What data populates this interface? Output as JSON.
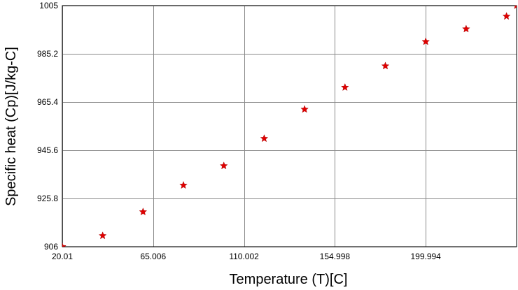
{
  "chart_data": {
    "type": "scatter",
    "title": "",
    "xlabel": "Temperature (T)[C]",
    "ylabel": "Specific heat (Cp)[J/kg-C]",
    "xlim": [
      20.01,
      245.0
    ],
    "ylim": [
      906,
      1005
    ],
    "x_ticks": [
      20.01,
      65.006,
      110.002,
      154.998,
      199.994
    ],
    "x_tick_labels": [
      "20.01",
      "65.006",
      "110.002",
      "154.998",
      "199.994"
    ],
    "y_ticks": [
      906,
      925.8,
      945.6,
      965.4,
      985.2,
      1005
    ],
    "y_tick_labels": [
      "906",
      "925.8",
      "945.6",
      "965.4",
      "985.2",
      "1005"
    ],
    "grid": true,
    "legend": "none",
    "marker": "star",
    "series": [
      {
        "marker_color": "#e00000",
        "x": [
          20.01,
          40,
          60,
          80,
          100,
          120,
          140,
          160,
          180,
          200,
          220,
          240,
          245
        ],
        "y": [
          906,
          910.5,
          920.3,
          931.2,
          939.2,
          950.4,
          962.4,
          971.4,
          980.2,
          990.2,
          995.4,
          1000.6,
          1005
        ]
      }
    ]
  }
}
